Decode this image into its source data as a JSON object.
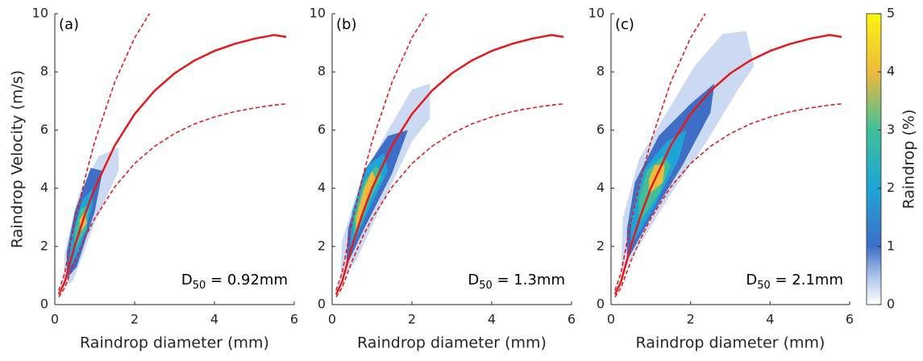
{
  "chart_data": [
    {
      "type": "contour",
      "title": "(a)",
      "xlabel": "Raindrop diameter (mm)",
      "ylabel": "Raindrop Velocity (m/s)",
      "annotation": {
        "symbol": "D",
        "subscript": "50",
        "text": " = 0.92mm"
      },
      "xlim": [
        0,
        6
      ],
      "ylim": [
        0,
        10
      ],
      "xticks": [
        0,
        2,
        4,
        6
      ],
      "yticks": [
        0,
        2,
        4,
        6,
        8,
        10
      ],
      "contours": [
        {
          "level": 0.3,
          "x": [
            0.2,
            0.45,
            1.0,
            1.6,
            1.6,
            1.1,
            0.6,
            0.25
          ],
          "y": [
            0.6,
            0.8,
            2.8,
            4.6,
            5.4,
            5.1,
            3.8,
            1.8
          ]
        },
        {
          "level": 1,
          "x": [
            0.3,
            0.55,
            1.0,
            1.2,
            0.9,
            0.5,
            0.3
          ],
          "y": [
            0.9,
            1.3,
            3.2,
            4.6,
            4.7,
            3.2,
            1.8
          ]
        },
        {
          "level": 2,
          "x": [
            0.35,
            0.6,
            0.95,
            0.95,
            0.7,
            0.4
          ],
          "y": [
            1.2,
            1.8,
            3.4,
            4.0,
            3.6,
            2.3
          ]
        },
        {
          "level": 3,
          "x": [
            0.5,
            0.8,
            0.85,
            0.65,
            0.5
          ],
          "y": [
            1.9,
            2.6,
            3.4,
            3.3,
            2.5
          ]
        },
        {
          "level": 4,
          "x": [
            0.65,
            0.8,
            0.75,
            0.62
          ],
          "y": [
            2.5,
            2.8,
            3.2,
            2.9
          ]
        }
      ],
      "series": [
        {
          "color": "#e31a1c",
          "style": "solid",
          "x": [
            0.1,
            0.25,
            0.5,
            0.75,
            1,
            1.5,
            2,
            2.5,
            3,
            3.5,
            4,
            4.5,
            5,
            5.5,
            5.8
          ],
          "y": [
            0.35,
            0.78,
            2.02,
            3.08,
            4.0,
            5.46,
            6.55,
            7.35,
            7.95,
            8.39,
            8.72,
            8.96,
            9.14,
            9.27,
            9.2
          ]
        },
        {
          "color": "#e31a1c",
          "style": "dashed",
          "x": [
            0.1,
            0.25,
            0.5,
            0.75,
            1,
            1.5,
            2,
            2.5
          ],
          "y": [
            0.49,
            1.09,
            2.83,
            4.31,
            5.6,
            7.64,
            9.17,
            10.29
          ]
        },
        {
          "color": "#e31a1c",
          "style": "dashed",
          "x": [
            0.1,
            0.25,
            0.5,
            0.75,
            1,
            1.5,
            2,
            2.5,
            3,
            3.5,
            4,
            4.5,
            5,
            5.5,
            5.8
          ],
          "y": [
            0.26,
            0.58,
            1.49,
            2.28,
            2.96,
            4.04,
            4.85,
            5.44,
            5.88,
            6.21,
            6.45,
            6.63,
            6.76,
            6.86,
            6.9
          ]
        }
      ]
    },
    {
      "type": "contour",
      "title": "(b)",
      "xlabel": "Raindrop diameter (mm)",
      "annotation": {
        "symbol": "D",
        "subscript": "50",
        "text": " = 1.3mm"
      },
      "xlim": [
        0,
        6
      ],
      "ylim": [
        0,
        10
      ],
      "xticks": [
        0,
        2,
        4,
        6
      ],
      "yticks": [
        0,
        2,
        4,
        6,
        8,
        10
      ],
      "contours": [
        {
          "level": 0.3,
          "x": [
            0.2,
            0.6,
            1.3,
            2.0,
            2.45,
            2.45,
            2.0,
            1.4,
            0.7,
            0.25
          ],
          "y": [
            0.8,
            1.5,
            3.6,
            5.6,
            6.4,
            7.6,
            7.4,
            6.0,
            4.2,
            2.2
          ]
        },
        {
          "level": 1,
          "x": [
            0.35,
            0.8,
            1.5,
            1.9,
            1.4,
            0.8,
            0.4
          ],
          "y": [
            1.3,
            2.6,
            4.5,
            6.0,
            5.8,
            4.6,
            2.6
          ]
        },
        {
          "level": 2,
          "x": [
            0.45,
            0.9,
            1.4,
            1.3,
            0.9,
            0.5
          ],
          "y": [
            1.8,
            3.2,
            4.6,
            5.2,
            4.8,
            3.2
          ]
        },
        {
          "level": 3,
          "x": [
            0.55,
            0.95,
            1.25,
            1.1,
            0.8,
            0.55
          ],
          "y": [
            2.2,
            3.6,
            4.4,
            4.8,
            4.2,
            3.0
          ]
        },
        {
          "level": 4,
          "x": [
            0.6,
            0.85,
            1.1,
            1.0,
            0.8,
            0.6
          ],
          "y": [
            2.4,
            3.6,
            4.3,
            4.6,
            4.0,
            3.0
          ]
        }
      ],
      "series": [
        {
          "color": "#e31a1c",
          "style": "solid",
          "x": [
            0.1,
            0.25,
            0.5,
            0.75,
            1,
            1.5,
            2,
            2.5,
            3,
            3.5,
            4,
            4.5,
            5,
            5.5,
            5.8
          ],
          "y": [
            0.35,
            0.78,
            2.02,
            3.08,
            4.0,
            5.46,
            6.55,
            7.35,
            7.95,
            8.39,
            8.72,
            8.96,
            9.14,
            9.27,
            9.2
          ]
        },
        {
          "color": "#e31a1c",
          "style": "dashed",
          "x": [
            0.1,
            0.25,
            0.5,
            0.75,
            1,
            1.5,
            2,
            2.5
          ],
          "y": [
            0.49,
            1.09,
            2.83,
            4.31,
            5.6,
            7.64,
            9.17,
            10.29
          ]
        },
        {
          "color": "#e31a1c",
          "style": "dashed",
          "x": [
            0.1,
            0.25,
            0.5,
            0.75,
            1,
            1.5,
            2,
            2.5,
            3,
            3.5,
            4,
            4.5,
            5,
            5.5,
            5.8
          ],
          "y": [
            0.26,
            0.58,
            1.49,
            2.28,
            2.96,
            4.04,
            4.85,
            5.44,
            5.88,
            6.21,
            6.45,
            6.63,
            6.76,
            6.86,
            6.9
          ]
        }
      ]
    },
    {
      "type": "contour",
      "title": "(c)",
      "xlabel": "Raindrop diameter (mm)",
      "annotation": {
        "symbol": "D",
        "subscript": "50",
        "text": " = 2.1mm"
      },
      "xlim": [
        0,
        6
      ],
      "ylim": [
        0,
        10
      ],
      "xticks": [
        0,
        2,
        4,
        6
      ],
      "yticks": [
        0,
        2,
        4,
        6,
        8,
        10
      ],
      "contours": [
        {
          "level": 0.3,
          "x": [
            0.25,
            0.7,
            1.5,
            2.4,
            3.2,
            3.6,
            3.4,
            2.8,
            2.1,
            1.4,
            0.7,
            0.3
          ],
          "y": [
            1.0,
            2.0,
            3.8,
            5.6,
            7.4,
            8.2,
            9.4,
            9.3,
            8.2,
            6.6,
            5.0,
            3.0
          ]
        },
        {
          "level": 1,
          "x": [
            0.4,
            1.0,
            1.8,
            2.5,
            2.6,
            2.0,
            1.2,
            0.6,
            0.4
          ],
          "y": [
            1.5,
            3.0,
            4.8,
            6.6,
            7.6,
            6.9,
            5.8,
            4.2,
            2.6
          ]
        },
        {
          "level": 2,
          "x": [
            0.5,
            1.1,
            1.7,
            1.9,
            1.4,
            0.8,
            0.5
          ],
          "y": [
            2.0,
            3.4,
            5.0,
            6.0,
            5.6,
            4.6,
            3.0
          ]
        },
        {
          "level": 3,
          "x": [
            0.7,
            1.2,
            1.5,
            1.3,
            0.9,
            0.7
          ],
          "y": [
            2.8,
            3.8,
            4.8,
            5.1,
            4.6,
            3.6
          ]
        },
        {
          "level": 4,
          "x": [
            0.95,
            1.3,
            1.35,
            1.1,
            0.95
          ],
          "y": [
            3.8,
            4.2,
            4.8,
            4.8,
            4.3
          ]
        }
      ],
      "series": [
        {
          "color": "#e31a1c",
          "style": "solid",
          "x": [
            0.1,
            0.25,
            0.5,
            0.75,
            1,
            1.5,
            2,
            2.5,
            3,
            3.5,
            4,
            4.5,
            5,
            5.5,
            5.8
          ],
          "y": [
            0.35,
            0.78,
            2.02,
            3.08,
            4.0,
            5.46,
            6.55,
            7.35,
            7.95,
            8.39,
            8.72,
            8.96,
            9.14,
            9.27,
            9.2
          ]
        },
        {
          "color": "#e31a1c",
          "style": "dashed",
          "x": [
            0.1,
            0.25,
            0.5,
            0.75,
            1,
            1.5,
            2,
            2.5
          ],
          "y": [
            0.49,
            1.09,
            2.83,
            4.31,
            5.6,
            7.64,
            9.17,
            10.29
          ]
        },
        {
          "color": "#e31a1c",
          "style": "dashed",
          "x": [
            0.1,
            0.25,
            0.5,
            0.75,
            1,
            1.5,
            2,
            2.5,
            3,
            3.5,
            4,
            4.5,
            5,
            5.5,
            5.8
          ],
          "y": [
            0.26,
            0.58,
            1.49,
            2.28,
            2.96,
            4.04,
            4.85,
            5.44,
            5.88,
            6.21,
            6.45,
            6.63,
            6.76,
            6.86,
            6.9
          ]
        }
      ]
    }
  ],
  "colorbar": {
    "label": "Raindrop (%)",
    "clim": [
      0,
      5
    ],
    "ticks": [
      0,
      1,
      2,
      3,
      4,
      5
    ],
    "colormap": [
      {
        "value": 0,
        "color": "#ffffff"
      },
      {
        "value": 0.5,
        "color": "#a9c2ea"
      },
      {
        "value": 1,
        "color": "#3f6ec6"
      },
      {
        "value": 2,
        "color": "#1ea5d6"
      },
      {
        "value": 3,
        "color": "#42bf97"
      },
      {
        "value": 4,
        "color": "#eeba3c"
      },
      {
        "value": 5,
        "color": "#f9f50f"
      }
    ]
  }
}
